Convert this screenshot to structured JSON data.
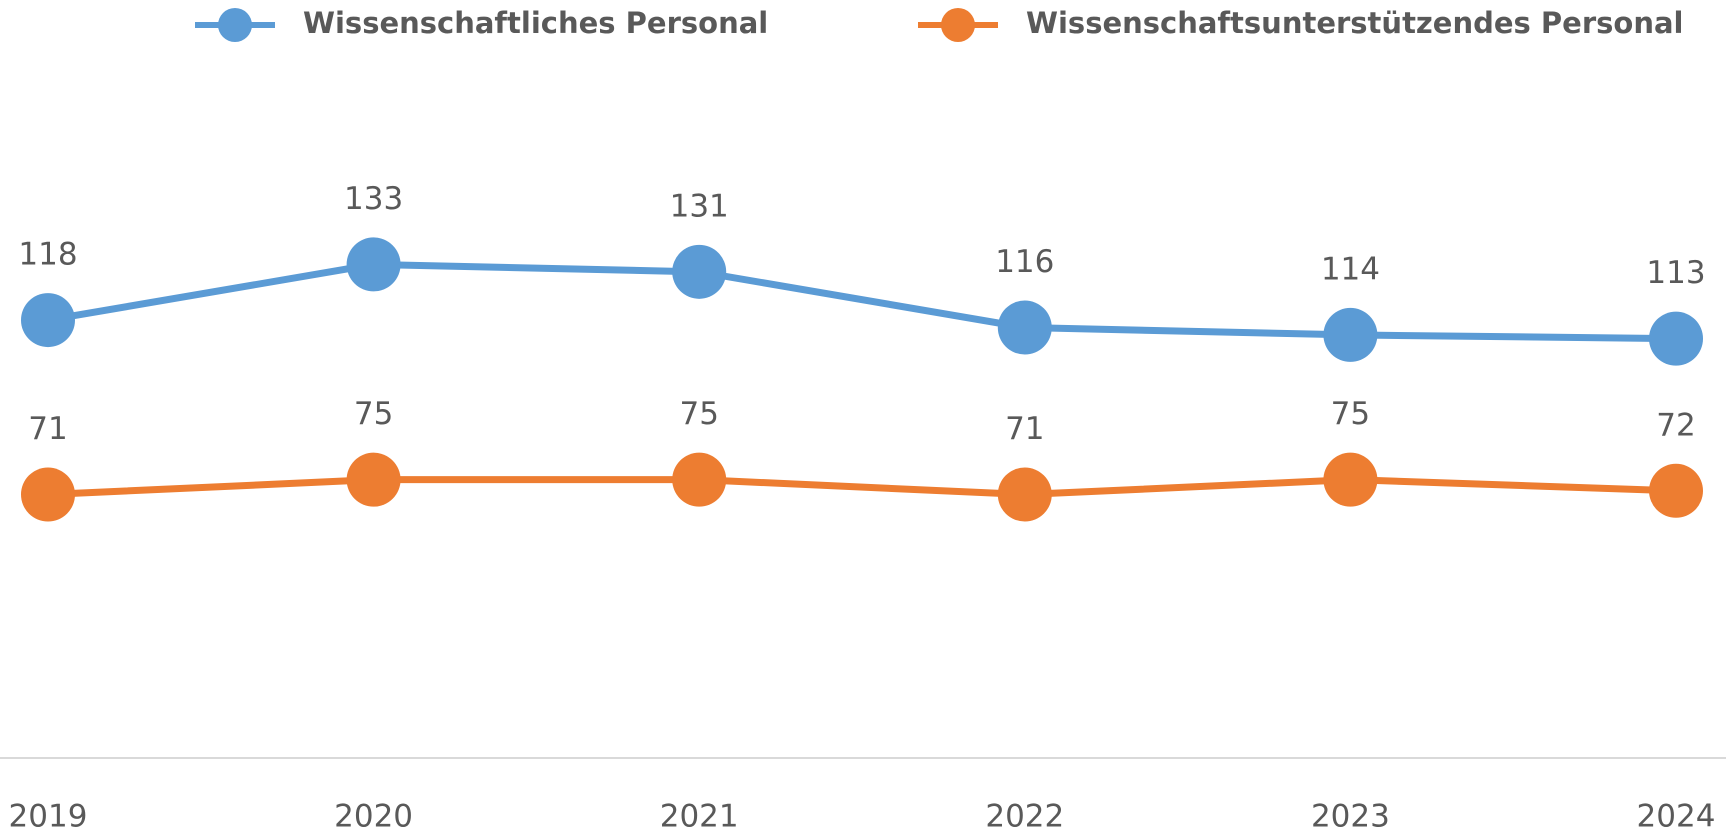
{
  "chart_data": {
    "type": "line",
    "categories": [
      "2019",
      "2020",
      "2021",
      "2022",
      "2023",
      "2024"
    ],
    "series": [
      {
        "name": "Wissenschaftliches Personal",
        "color": "#5b9bd5",
        "values": [
          118,
          133,
          131,
          116,
          114,
          113
        ]
      },
      {
        "name": "Wissenschaftsunterstützendes Personal",
        "color": "#ed7d31",
        "values": [
          71,
          75,
          75,
          71,
          75,
          72
        ]
      }
    ],
    "ylim": [
      0,
      180
    ],
    "legend": "top"
  }
}
